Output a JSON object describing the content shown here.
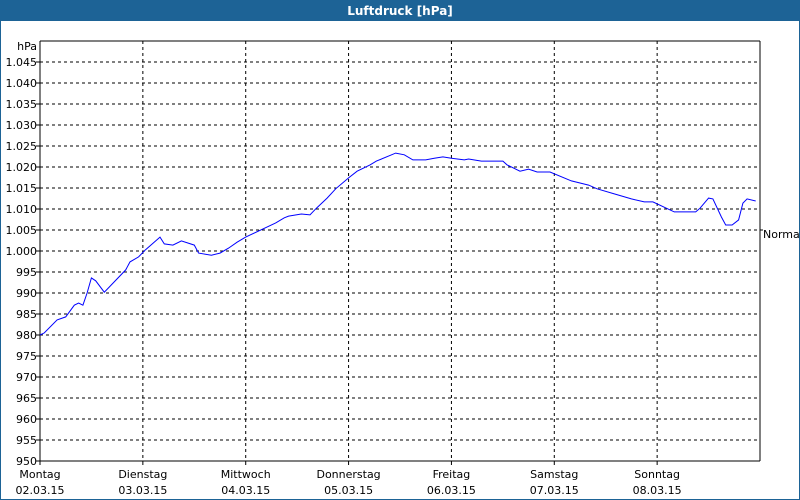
{
  "window": {
    "title": "Luftdruck [hPa]",
    "frame_color": "#1d6396"
  },
  "chart_data": {
    "type": "line",
    "title": "Luftdruck [hPa]",
    "ylabel": "hPa",
    "ylim": [
      950,
      1050
    ],
    "y_ticks": [
      {
        "value": 950,
        "label": "950"
      },
      {
        "value": 955,
        "label": "955"
      },
      {
        "value": 960,
        "label": "960"
      },
      {
        "value": 965,
        "label": "965"
      },
      {
        "value": 970,
        "label": "970"
      },
      {
        "value": 975,
        "label": "975"
      },
      {
        "value": 980,
        "label": "980"
      },
      {
        "value": 985,
        "label": "985"
      },
      {
        "value": 990,
        "label": "990"
      },
      {
        "value": 995,
        "label": "995"
      },
      {
        "value": 1000,
        "label": "1.000"
      },
      {
        "value": 1005,
        "label": "1.005"
      },
      {
        "value": 1010,
        "label": "1.010"
      },
      {
        "value": 1015,
        "label": "1.015"
      },
      {
        "value": 1020,
        "label": "1.020"
      },
      {
        "value": 1025,
        "label": "1.025"
      },
      {
        "value": 1030,
        "label": "1.030"
      },
      {
        "value": 1035,
        "label": "1.035"
      },
      {
        "value": 1040,
        "label": "1.040"
      },
      {
        "value": 1045,
        "label": "1.045"
      }
    ],
    "xlim": [
      "02.03.15 00:00",
      "09.03.15 00:00"
    ],
    "x_ticks": [
      {
        "day": "Montag",
        "date": "02.03.15"
      },
      {
        "day": "Dienstag",
        "date": "03.03.15"
      },
      {
        "day": "Mittwoch",
        "date": "04.03.15"
      },
      {
        "day": "Donnerstag",
        "date": "05.03.15"
      },
      {
        "day": "Freitag",
        "date": "06.03.15"
      },
      {
        "day": "Samstag",
        "date": "07.03.15"
      },
      {
        "day": "Sonntag",
        "date": "08.03.15"
      }
    ],
    "grid": true,
    "reference_line": {
      "label": "Normal",
      "value": 1005
    },
    "series_color": "#0000ff",
    "points": [
      [
        "02.03.15 00:00",
        980.0
      ],
      [
        "02.03.15 01:00",
        980.5
      ],
      [
        "02.03.15 04:00",
        983.6
      ],
      [
        "02.03.15 06:00",
        984.3
      ],
      [
        "02.03.15 08:00",
        987.1
      ],
      [
        "02.03.15 09:00",
        987.6
      ],
      [
        "02.03.15 10:00",
        987.1
      ],
      [
        "02.03.15 11:00",
        990.0
      ],
      [
        "02.03.15 12:00",
        993.6
      ],
      [
        "02.03.15 13:00",
        992.9
      ],
      [
        "02.03.15 15:00",
        990.2
      ],
      [
        "02.03.15 20:00",
        995.5
      ],
      [
        "02.03.15 21:00",
        997.4
      ],
      [
        "02.03.15 23:00",
        998.6
      ],
      [
        "03.03.15 00:30",
        1000.2
      ],
      [
        "03.03.15 04:00",
        1003.3
      ],
      [
        "03.03.15 05:00",
        1001.7
      ],
      [
        "03.03.15 07:00",
        1001.4
      ],
      [
        "03.03.15 09:00",
        1002.4
      ],
      [
        "03.03.15 12:00",
        1001.4
      ],
      [
        "03.03.15 13:00",
        999.5
      ],
      [
        "03.03.15 16:00",
        999.0
      ],
      [
        "03.03.15 18:00",
        999.5
      ],
      [
        "03.03.15 20:00",
        1000.7
      ],
      [
        "03.03.15 22:00",
        1002.1
      ],
      [
        "04.03.15 00:00",
        1003.3
      ],
      [
        "04.03.15 07:00",
        1006.7
      ],
      [
        "04.03.15 09:00",
        1007.9
      ],
      [
        "04.03.15 10:00",
        1008.3
      ],
      [
        "04.03.15 13:00",
        1008.8
      ],
      [
        "04.03.15 15:00",
        1008.6
      ],
      [
        "04.03.15 16:30",
        1010.2
      ],
      [
        "04.03.15 19:00",
        1012.6
      ],
      [
        "04.03.15 21:00",
        1014.8
      ],
      [
        "05.03.15 00:00",
        1017.4
      ],
      [
        "05.03.15 02:00",
        1019.0
      ],
      [
        "05.03.15 05:00",
        1020.5
      ],
      [
        "05.03.15 06:30",
        1021.4
      ],
      [
        "05.03.15 11:00",
        1023.3
      ],
      [
        "05.03.15 13:00",
        1022.9
      ],
      [
        "05.03.15 15:00",
        1021.7
      ],
      [
        "05.03.15 18:00",
        1021.7
      ],
      [
        "05.03.15 20:00",
        1022.1
      ],
      [
        "05.03.15 22:00",
        1022.4
      ],
      [
        "06.03.15 00:00",
        1022.1
      ],
      [
        "06.03.15 03:00",
        1021.7
      ],
      [
        "06.03.15 04:00",
        1021.9
      ],
      [
        "06.03.15 07:00",
        1021.4
      ],
      [
        "06.03.15 12:00",
        1021.4
      ],
      [
        "06.03.15 13:00",
        1020.5
      ],
      [
        "06.03.15 16:00",
        1019.0
      ],
      [
        "06.03.15 18:00",
        1019.5
      ],
      [
        "06.03.15 20:00",
        1018.8
      ],
      [
        "06.03.15 23:00",
        1018.8
      ],
      [
        "07.03.15 04:00",
        1016.7
      ],
      [
        "07.03.15 08:00",
        1015.7
      ],
      [
        "07.03.15 10:00",
        1014.8
      ],
      [
        "07.03.15 14:00",
        1013.6
      ],
      [
        "07.03.15 18:00",
        1012.4
      ],
      [
        "07.03.15 21:00",
        1011.7
      ],
      [
        "07.03.15 23:00",
        1011.7
      ],
      [
        "08.03.15 04:00",
        1009.3
      ],
      [
        "08.03.15 09:00",
        1009.3
      ],
      [
        "08.03.15 10:00",
        1010.2
      ],
      [
        "08.03.15 12:00",
        1012.6
      ],
      [
        "08.03.15 13:00",
        1012.4
      ],
      [
        "08.03.15 15:00",
        1008.1
      ],
      [
        "08.03.15 16:00",
        1006.2
      ],
      [
        "08.03.15 17:30",
        1006.2
      ],
      [
        "08.03.15 19:00",
        1007.4
      ],
      [
        "08.03.15 20:00",
        1011.4
      ],
      [
        "08.03.15 21:00",
        1012.4
      ],
      [
        "08.03.15 23:00",
        1011.9
      ]
    ]
  }
}
